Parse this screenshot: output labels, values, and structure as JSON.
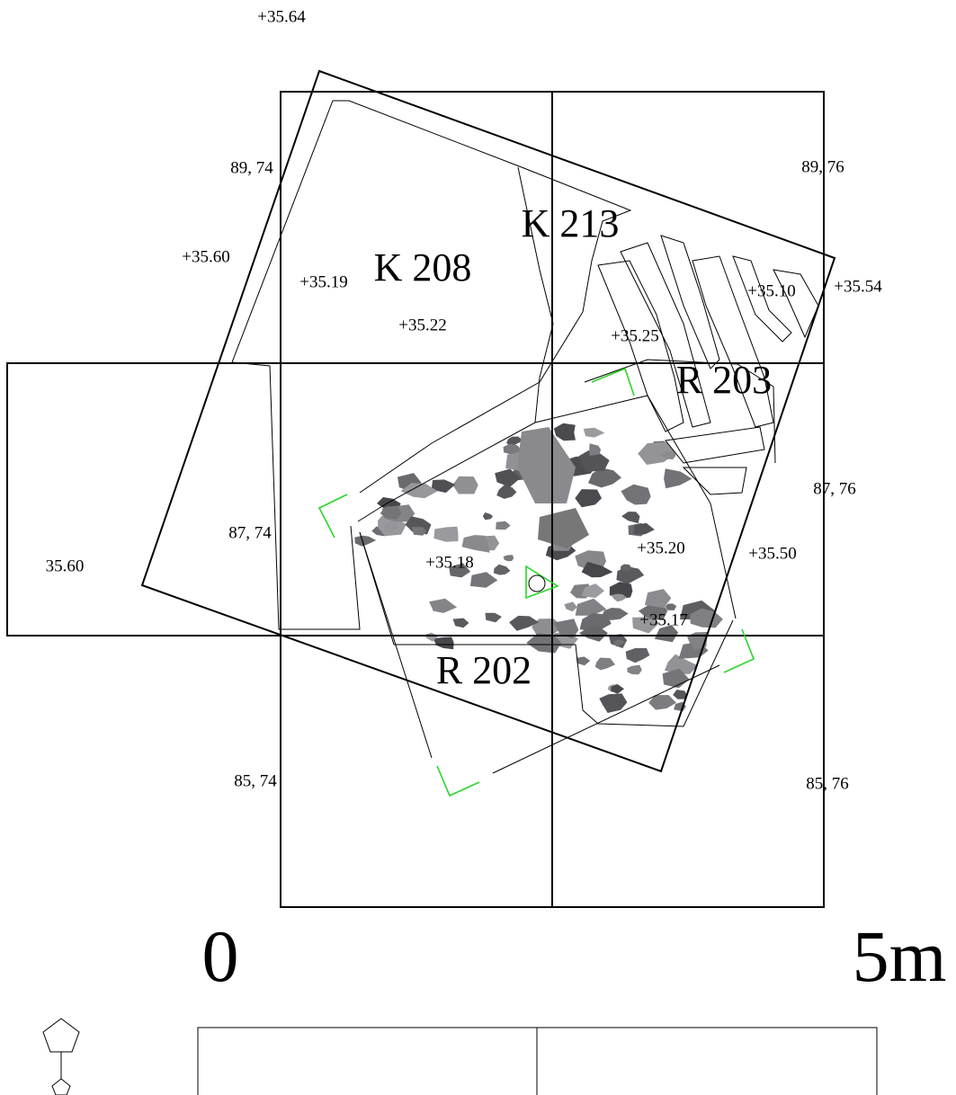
{
  "grid_coordinates": [
    "89, 74",
    "89, 76",
    "87, 76",
    "87, 74",
    "85, 74",
    "85, 76"
  ],
  "elevations": [
    "+35.64",
    "+35.60",
    "+35.19",
    "+35.22",
    "+35.10",
    "+35.54",
    "+35.25",
    "35.60",
    "+35.20",
    "+35.18",
    "+35.50",
    "+35.17"
  ],
  "context_labels": [
    "K 208",
    "K 213",
    "R 203",
    "R 202"
  ],
  "scale_bar": {
    "start": "0",
    "end": "5m"
  }
}
